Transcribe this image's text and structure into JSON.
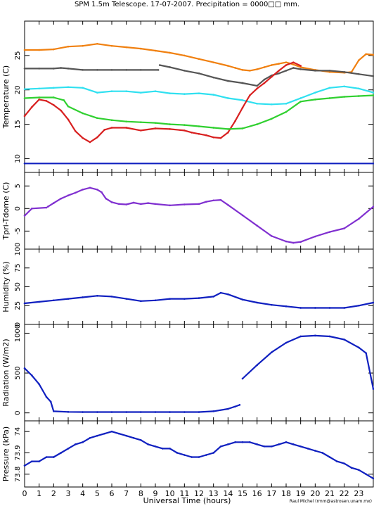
{
  "title": "SPM 1.5m Telescope. 17-07-2007. Precipitation = 0000□□ mm.",
  "credit": "Raul Michel (rmm@astrosen.unam.mx)",
  "xlabel": "Universal Time (hours)",
  "xticks": [
    "0",
    "1",
    "2",
    "3",
    "4",
    "5",
    "6",
    "7",
    "8",
    "9",
    "10",
    "11",
    "12",
    "13",
    "14",
    "15",
    "16",
    "17",
    "18",
    "19",
    "20",
    "21",
    "22",
    "23"
  ],
  "xlim": [
    0,
    24
  ],
  "colors": {
    "orange": "#f08010",
    "darkgray": "#555555",
    "cyan": "#30e0f0",
    "red": "#d82020",
    "green": "#30d030",
    "blue": "#1020c0",
    "purple": "#8030d0"
  },
  "chart_data": [
    {
      "type": "scatter",
      "ylabel": "Temperature (C)",
      "ylim": [
        8,
        30
      ],
      "yticks": [
        "10",
        "15",
        "20",
        "25"
      ],
      "series": [
        {
          "color": "orange",
          "x": [
            0,
            1,
            2,
            3,
            4,
            5,
            6,
            7,
            8,
            9,
            10,
            11,
            12,
            13,
            14,
            14.5,
            15,
            15.5,
            16,
            16.5,
            17,
            17.5,
            18,
            18.5,
            19,
            20,
            21,
            22,
            22.5,
            23,
            23.5,
            24
          ],
          "y": [
            25.8,
            25.8,
            25.9,
            26.3,
            26.4,
            26.7,
            26.4,
            26.2,
            26,
            25.7,
            25.4,
            25,
            24.5,
            24,
            23.5,
            23.2,
            22.9,
            22.8,
            23,
            23.3,
            23.6,
            23.8,
            24,
            23.7,
            23.3,
            22.9,
            22.6,
            22.5,
            22.6,
            24.3,
            25.2,
            25.1
          ]
        },
        {
          "color": "darkgray",
          "x": [
            0,
            1,
            2,
            2.5,
            3,
            4,
            5,
            6,
            7,
            8,
            9.2
          ],
          "y": [
            23.1,
            23.1,
            23.1,
            23.2,
            23.1,
            22.9,
            22.9,
            22.9,
            22.9,
            22.9,
            22.9
          ]
        },
        {
          "color": "darkgray",
          "x": [
            9.3,
            10,
            11,
            12,
            13,
            14,
            15,
            16,
            16.5,
            17,
            17.5,
            18,
            18.5,
            19,
            20,
            21,
            22,
            23,
            24
          ],
          "y": [
            23.6,
            23.3,
            22.8,
            22.4,
            21.8,
            21.3,
            21,
            20.6,
            21.5,
            22.1,
            22.4,
            22.8,
            23.2,
            23,
            22.8,
            22.8,
            22.6,
            22.3,
            22
          ]
        },
        {
          "color": "cyan",
          "x": [
            0,
            1,
            2,
            3,
            4,
            5,
            6,
            7,
            8,
            9,
            10,
            11,
            12,
            13,
            14,
            15,
            16,
            17,
            18,
            19,
            20,
            21,
            22,
            23,
            24
          ],
          "y": [
            20.1,
            20.2,
            20.3,
            20.4,
            20.3,
            19.6,
            19.8,
            19.8,
            19.6,
            19.8,
            19.5,
            19.4,
            19.5,
            19.3,
            18.8,
            18.5,
            18,
            17.9,
            18,
            18.8,
            19.6,
            20.3,
            20.5,
            20.2,
            19.6
          ]
        },
        {
          "color": "red",
          "x": [
            0,
            0.5,
            1,
            1.5,
            2,
            2.5,
            3,
            3.5,
            4,
            4.5,
            5,
            5.5,
            6,
            7,
            8,
            9,
            10,
            11,
            11.5,
            12,
            12.5,
            13,
            13.5,
            14,
            14.5,
            15,
            15.5,
            16,
            16.5,
            17,
            17.5,
            18,
            18.5,
            19
          ],
          "y": [
            16.2,
            17.5,
            18.6,
            18.4,
            17.8,
            17,
            15.7,
            14,
            13,
            12.4,
            13.1,
            14.2,
            14.5,
            14.5,
            14.1,
            14.4,
            14.3,
            14.1,
            13.8,
            13.6,
            13.4,
            13.1,
            13,
            13.8,
            15.5,
            17.4,
            19.2,
            20.2,
            21,
            21.9,
            22.8,
            23.6,
            24,
            23.5
          ]
        },
        {
          "color": "green",
          "x": [
            0,
            1,
            2,
            2.7,
            3,
            4,
            5,
            6,
            7,
            8,
            9,
            10,
            11,
            12,
            13,
            14,
            15,
            16,
            17,
            18,
            19,
            20,
            21,
            22,
            23,
            24
          ],
          "y": [
            18.8,
            18.9,
            18.9,
            18.5,
            17.6,
            16.6,
            15.9,
            15.6,
            15.4,
            15.3,
            15.2,
            15,
            14.9,
            14.7,
            14.5,
            14.3,
            14.4,
            15,
            15.8,
            16.8,
            18.3,
            18.6,
            18.8,
            19,
            19.1,
            19.2
          ]
        },
        {
          "color": "blue",
          "x": [
            0,
            24
          ],
          "y": [
            9.3,
            9.3
          ]
        }
      ]
    },
    {
      "type": "scatter",
      "ylabel": "Tpri-Tdome (C)",
      "ylim": [
        -9,
        8
      ],
      "yticks": [
        "-5",
        "0",
        "5"
      ],
      "series": [
        {
          "color": "purple",
          "x": [
            0,
            0.5,
            1.5
          ],
          "y": [
            -1.6,
            0,
            0.2
          ]
        },
        {
          "color": "purple",
          "x": [
            1.6,
            2,
            2.5,
            3,
            3.5,
            4,
            4.5,
            5,
            5.3,
            5.6,
            6,
            6.5,
            7,
            7.5,
            8,
            8.5,
            9,
            10,
            11,
            12,
            12.5,
            13,
            13.5,
            14,
            15,
            16,
            17,
            18,
            18.5,
            19,
            20,
            21,
            22,
            23,
            24
          ],
          "y": [
            0.4,
            1.2,
            2.2,
            2.9,
            3.5,
            4.2,
            4.6,
            4.2,
            3.6,
            2.2,
            1.4,
            1,
            0.9,
            1.3,
            1,
            1.2,
            1,
            0.7,
            0.9,
            1,
            1.5,
            1.8,
            1.9,
            0.8,
            -1.5,
            -3.8,
            -6.1,
            -7.3,
            -7.6,
            -7.4,
            -6.2,
            -5.2,
            -4.4,
            -2.3,
            0.4
          ]
        }
      ]
    },
    {
      "type": "scatter",
      "ylabel": "Humidity (%)",
      "ylim": [
        0,
        100
      ],
      "yticks": [
        "0",
        "25",
        "50",
        "75",
        "100"
      ],
      "series": [
        {
          "color": "blue",
          "x": [
            0,
            1,
            2,
            3,
            4,
            5,
            6,
            7,
            8,
            9,
            10,
            11,
            12,
            13,
            13.5,
            14,
            15,
            16,
            17,
            18,
            19,
            20,
            21,
            22,
            23,
            24
          ],
          "y": [
            28,
            30,
            32,
            34,
            36,
            38,
            37,
            34,
            31,
            32,
            34,
            34,
            35,
            37,
            42,
            40,
            33,
            29,
            26,
            24,
            22,
            22,
            22,
            22,
            25,
            29
          ]
        }
      ]
    },
    {
      "type": "scatter",
      "ylabel": "Radiation (W/m2)",
      "ylim": [
        -100,
        1110
      ],
      "yticks": [
        "0",
        "500",
        "1000"
      ],
      "series": [
        {
          "color": "blue",
          "x": [
            0,
            0.5,
            1,
            1.5,
            1.8,
            2,
            3,
            4,
            5,
            6,
            7,
            8,
            9,
            10,
            11,
            12,
            13,
            14,
            14.5,
            14.8
          ],
          "y": [
            560,
            470,
            360,
            200,
            140,
            20,
            12,
            10,
            10,
            10,
            10,
            10,
            10,
            10,
            10,
            10,
            20,
            50,
            80,
            100
          ]
        },
        {
          "color": "blue",
          "x": [
            15,
            16,
            17,
            18,
            19,
            20,
            21,
            22,
            23,
            23.5,
            24
          ],
          "y": [
            430,
            600,
            760,
            880,
            960,
            970,
            960,
            920,
            820,
            750,
            300
          ]
        }
      ]
    },
    {
      "type": "scatter",
      "ylabel": "Pressure (kPa)",
      "ylim": [
        73.74,
        74.05
      ],
      "yticks": [
        "73.8",
        "73.9",
        "74"
      ],
      "series": [
        {
          "color": "blue",
          "x": [
            0,
            0.5,
            1,
            1.5,
            2,
            2.5,
            3,
            3.5,
            4,
            4.5,
            5,
            5.5,
            6,
            6.5,
            7,
            7.5,
            8,
            8.5,
            9,
            9.5,
            10,
            10.5,
            11,
            11.5,
            12,
            12.5,
            13,
            13.5,
            14,
            14.5,
            15,
            15.5,
            16,
            16.5,
            17,
            17.5,
            18,
            18.5,
            19,
            19.5,
            20,
            20.5,
            21,
            21.5,
            22,
            22.5,
            23,
            23.5,
            24
          ],
          "y": [
            73.84,
            73.86,
            73.86,
            73.88,
            73.88,
            73.9,
            73.92,
            73.94,
            73.95,
            73.97,
            73.98,
            73.99,
            74,
            73.99,
            73.98,
            73.97,
            73.96,
            73.94,
            73.93,
            73.92,
            73.92,
            73.9,
            73.89,
            73.88,
            73.88,
            73.89,
            73.9,
            73.93,
            73.94,
            73.95,
            73.95,
            73.95,
            73.94,
            73.93,
            73.93,
            73.94,
            73.95,
            73.94,
            73.93,
            73.92,
            73.91,
            73.9,
            73.88,
            73.86,
            73.85,
            73.83,
            73.82,
            73.8,
            73.78
          ]
        }
      ]
    }
  ]
}
